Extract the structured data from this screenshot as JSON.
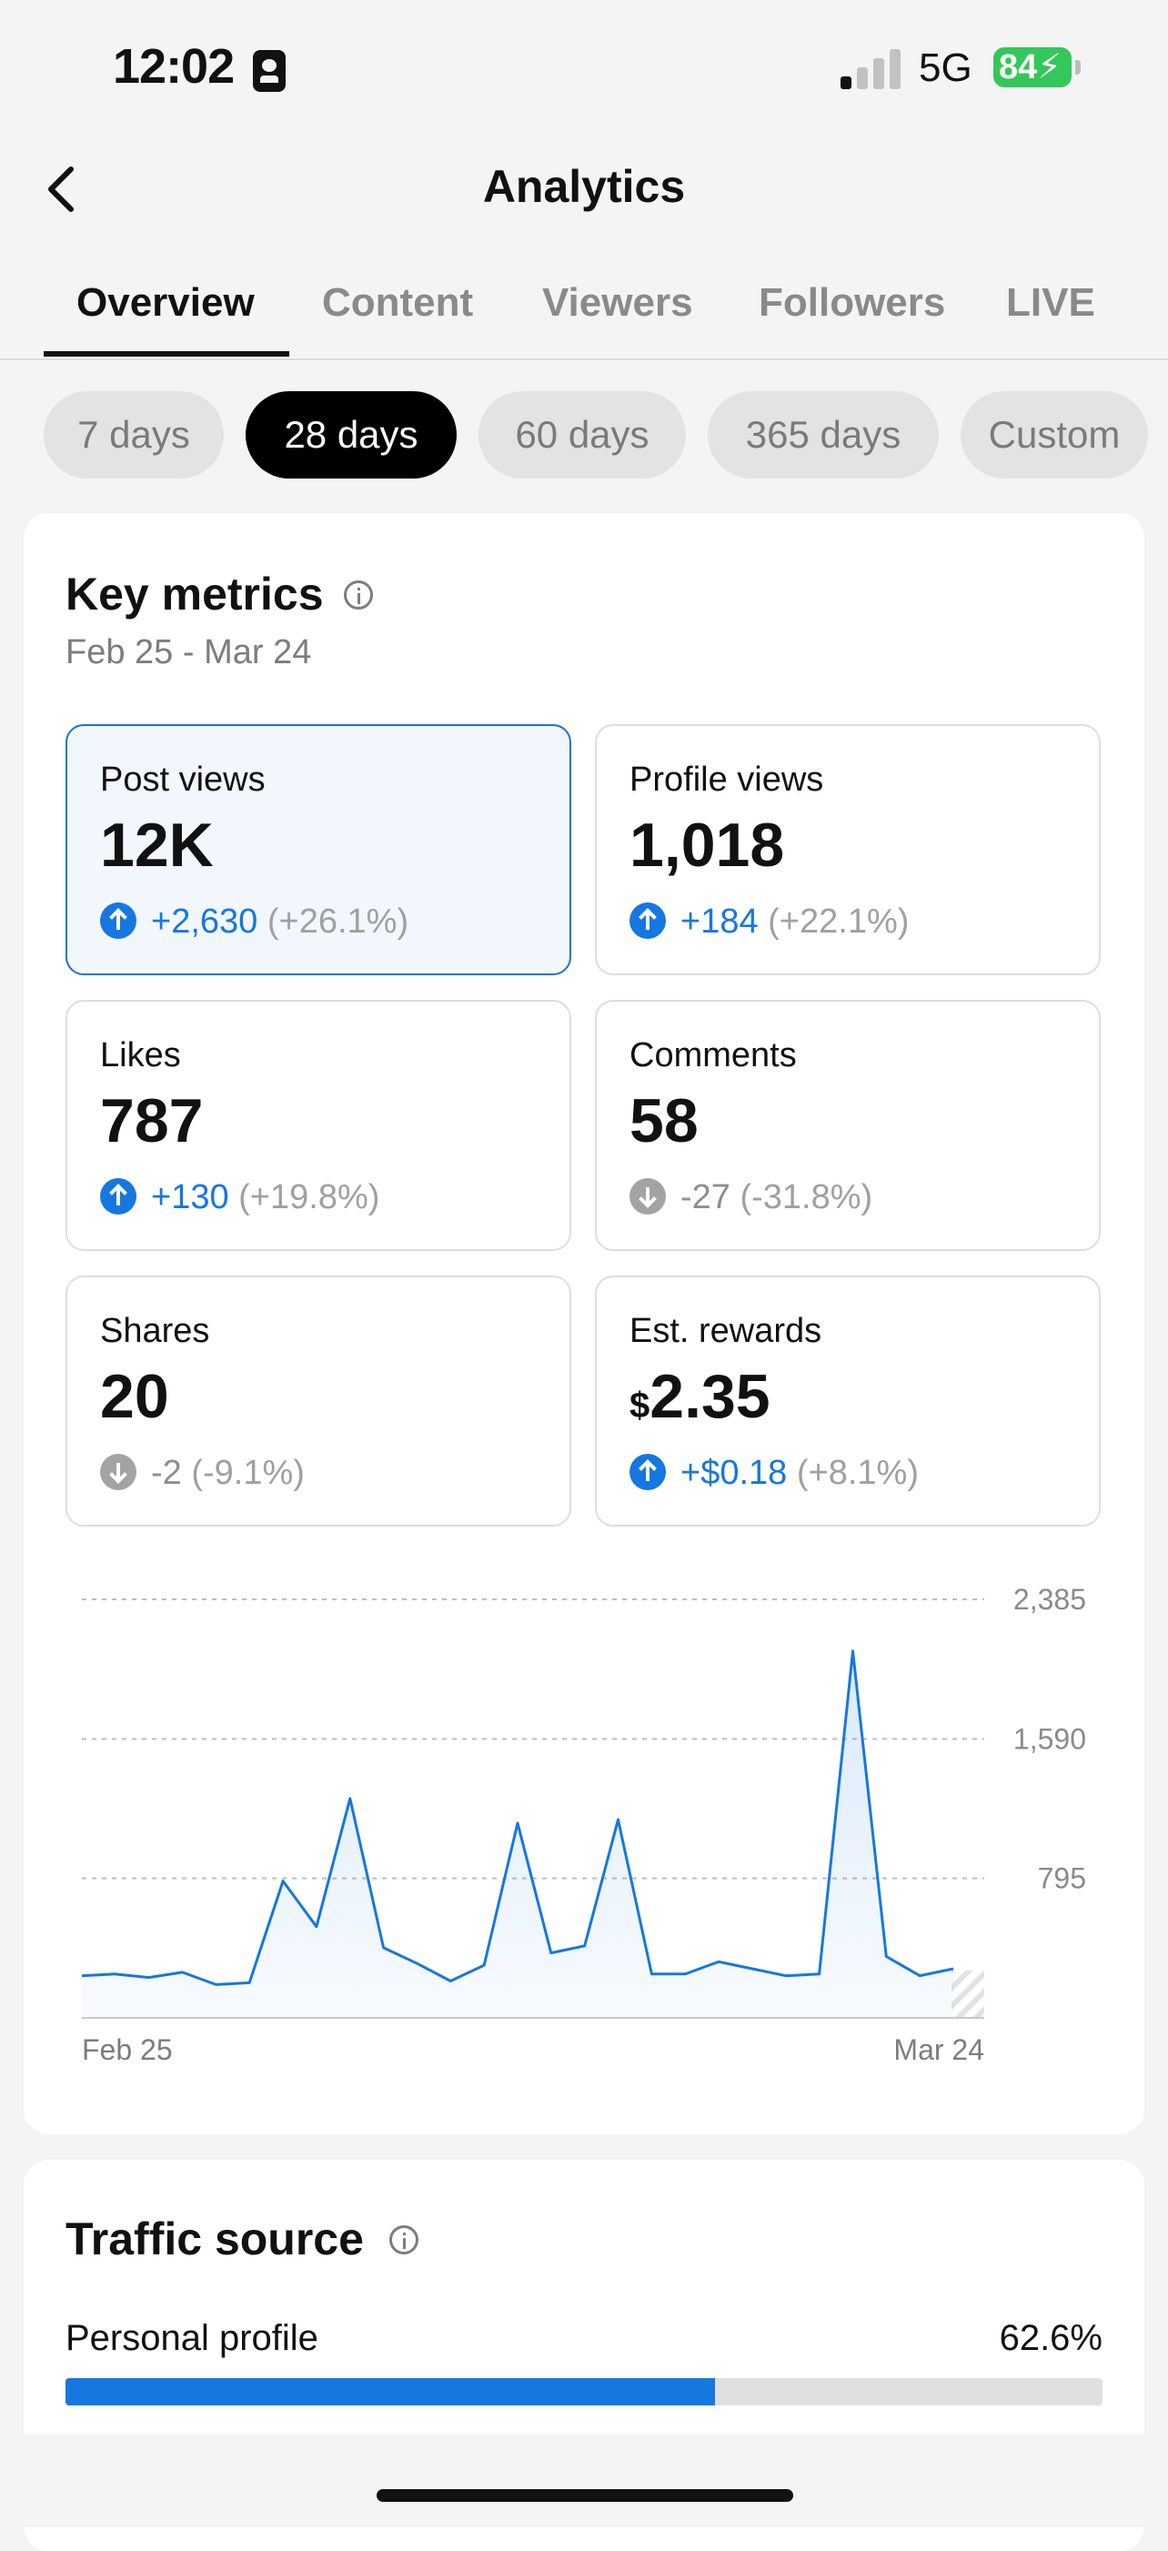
{
  "status_bar": {
    "time": "12:02",
    "network": "5G",
    "battery": "84"
  },
  "header": {
    "title": "Analytics"
  },
  "tabs": [
    "Overview",
    "Content",
    "Viewers",
    "Followers",
    "LIVE"
  ],
  "ranges": [
    "7 days",
    "28 days",
    "60 days",
    "365 days",
    "Custom"
  ],
  "key_metrics": {
    "title": "Key metrics",
    "date_range": "Feb 25 - Mar 24",
    "items": [
      {
        "label": "Post views",
        "value": "12K",
        "delta": "+2,630",
        "pct": "(+26.1%)",
        "direction": "up",
        "currency": ""
      },
      {
        "label": "Profile views",
        "value": "1,018",
        "delta": "+184",
        "pct": "(+22.1%)",
        "direction": "up",
        "currency": ""
      },
      {
        "label": "Likes",
        "value": "787",
        "delta": "+130",
        "pct": "(+19.8%)",
        "direction": "up",
        "currency": ""
      },
      {
        "label": "Comments",
        "value": "58",
        "delta": "-27",
        "pct": "(-31.8%)",
        "direction": "down",
        "currency": ""
      },
      {
        "label": "Shares",
        "value": "20",
        "delta": "-2",
        "pct": "(-9.1%)",
        "direction": "down",
        "currency": ""
      },
      {
        "label": "Est. rewards",
        "value": "2.35",
        "delta": "+$0.18",
        "pct": "(+8.1%)",
        "direction": "up",
        "currency": "$"
      }
    ]
  },
  "chart_data": {
    "type": "area",
    "x_labels": [
      "Feb 25",
      "Mar 24"
    ],
    "y_ticks": [
      "2,385",
      "1,590",
      "795"
    ],
    "ylim": [
      0,
      2385
    ],
    "values": [
      240,
      250,
      230,
      260,
      190,
      200,
      780,
      520,
      1250,
      400,
      310,
      210,
      300,
      1110,
      370,
      410,
      1130,
      250,
      250,
      320,
      280,
      240,
      250,
      2090,
      350,
      240,
      280
    ],
    "color": "#1677e0"
  },
  "traffic_source": {
    "title": "Traffic source",
    "rows": [
      {
        "label": "Personal profile",
        "value": "62.6%",
        "fraction": 0.626
      }
    ]
  },
  "colors": {
    "accent": "#1677e0",
    "battery": "#34c759"
  }
}
